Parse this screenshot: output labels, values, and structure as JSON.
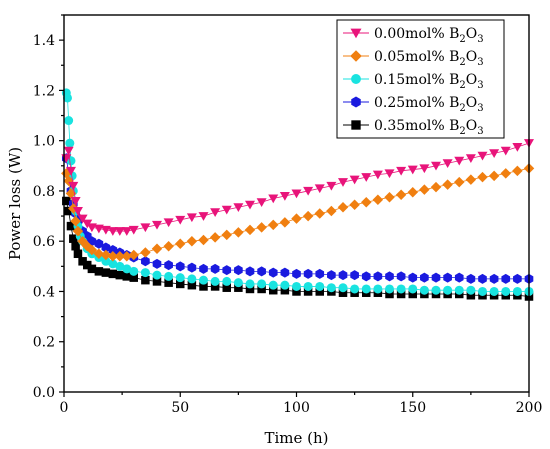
{
  "chart_data": {
    "type": "scatter",
    "title": "",
    "xlabel": "Time (h)",
    "ylabel": "Power loss (W)",
    "xlim": [
      0,
      200
    ],
    "ylim": [
      0,
      1.5
    ],
    "xticks": [
      0,
      50,
      100,
      150,
      200
    ],
    "yticks": [
      0.0,
      0.2,
      0.4,
      0.6,
      0.8,
      1.0,
      1.2,
      1.4
    ],
    "xtick_labels": [
      "0",
      "50",
      "100",
      "150",
      "200"
    ],
    "ytick_labels": [
      "0.0",
      "0.2",
      "0.4",
      "0.6",
      "0.8",
      "1.0",
      "1.2",
      "1.4"
    ],
    "grid": false,
    "legend_position": "top-right",
    "series": [
      {
        "name": "0.00mol% B2O3",
        "legend_main": "0.00mol% B",
        "legend_sub1": "2",
        "legend_mid": "O",
        "legend_sub2": "3",
        "marker": "triangle-down",
        "color": "#e8147a",
        "x": [
          1,
          2,
          3,
          4,
          5,
          6,
          8,
          10,
          12,
          15,
          18,
          21,
          24,
          27,
          30,
          35,
          40,
          45,
          50,
          55,
          60,
          65,
          70,
          75,
          80,
          85,
          90,
          95,
          100,
          105,
          110,
          115,
          120,
          125,
          130,
          135,
          140,
          145,
          150,
          155,
          160,
          165,
          170,
          175,
          180,
          185,
          190,
          195,
          200
        ],
        "y": [
          0.93,
          0.96,
          0.88,
          0.82,
          0.76,
          0.72,
          0.69,
          0.67,
          0.655,
          0.65,
          0.645,
          0.64,
          0.64,
          0.64,
          0.645,
          0.655,
          0.665,
          0.675,
          0.685,
          0.695,
          0.7,
          0.715,
          0.725,
          0.735,
          0.745,
          0.755,
          0.77,
          0.78,
          0.79,
          0.8,
          0.81,
          0.82,
          0.835,
          0.845,
          0.855,
          0.865,
          0.87,
          0.88,
          0.885,
          0.89,
          0.9,
          0.91,
          0.92,
          0.93,
          0.94,
          0.95,
          0.96,
          0.975,
          0.99
        ]
      },
      {
        "name": "0.05mol% B2O3",
        "legend_main": "0.05mol% B",
        "legend_sub1": "2",
        "legend_mid": "O",
        "legend_sub2": "3",
        "marker": "diamond",
        "color": "#f07f10",
        "x": [
          1,
          2,
          3,
          4,
          5,
          6,
          8,
          10,
          12,
          15,
          18,
          21,
          24,
          27,
          30,
          35,
          40,
          45,
          50,
          55,
          60,
          65,
          70,
          75,
          80,
          85,
          90,
          95,
          100,
          105,
          110,
          115,
          120,
          125,
          130,
          135,
          140,
          145,
          150,
          155,
          160,
          165,
          170,
          175,
          180,
          185,
          190,
          195,
          200
        ],
        "y": [
          0.87,
          0.84,
          0.79,
          0.73,
          0.68,
          0.64,
          0.6,
          0.58,
          0.565,
          0.55,
          0.545,
          0.54,
          0.54,
          0.54,
          0.545,
          0.555,
          0.57,
          0.58,
          0.59,
          0.6,
          0.605,
          0.615,
          0.625,
          0.635,
          0.645,
          0.655,
          0.665,
          0.675,
          0.69,
          0.7,
          0.71,
          0.72,
          0.735,
          0.745,
          0.755,
          0.765,
          0.775,
          0.785,
          0.795,
          0.805,
          0.815,
          0.825,
          0.835,
          0.845,
          0.855,
          0.86,
          0.87,
          0.88,
          0.89
        ]
      },
      {
        "name": "0.15mol% B2O3",
        "legend_main": "0.15mol% B",
        "legend_sub1": "2",
        "legend_mid": "O",
        "legend_sub2": "3",
        "marker": "circle",
        "color": "#19e3e0",
        "x": [
          1,
          1.5,
          2,
          2.5,
          3,
          3.5,
          4,
          5,
          6,
          7,
          8,
          10,
          12,
          15,
          18,
          21,
          24,
          27,
          30,
          35,
          40,
          45,
          50,
          55,
          60,
          65,
          70,
          75,
          80,
          85,
          90,
          95,
          100,
          105,
          110,
          115,
          120,
          125,
          130,
          135,
          140,
          145,
          150,
          155,
          160,
          165,
          170,
          175,
          180,
          185,
          190,
          195,
          200
        ],
        "y": [
          1.19,
          1.17,
          1.08,
          0.99,
          0.92,
          0.86,
          0.8,
          0.72,
          0.66,
          0.62,
          0.6,
          0.57,
          0.55,
          0.535,
          0.52,
          0.51,
          0.5,
          0.49,
          0.48,
          0.475,
          0.465,
          0.46,
          0.455,
          0.45,
          0.445,
          0.44,
          0.44,
          0.435,
          0.43,
          0.43,
          0.425,
          0.425,
          0.42,
          0.42,
          0.42,
          0.415,
          0.415,
          0.41,
          0.41,
          0.41,
          0.41,
          0.41,
          0.41,
          0.405,
          0.405,
          0.405,
          0.405,
          0.405,
          0.4,
          0.4,
          0.4,
          0.4,
          0.4
        ]
      },
      {
        "name": "0.25mol% B2O3",
        "legend_main": "0.25mol% B",
        "legend_sub1": "2",
        "legend_mid": "O",
        "legend_sub2": "3",
        "marker": "hexagon",
        "color": "#1a1adf",
        "x": [
          1,
          2,
          3,
          4,
          5,
          6,
          8,
          10,
          12,
          15,
          18,
          21,
          24,
          27,
          30,
          35,
          40,
          45,
          50,
          55,
          60,
          65,
          70,
          75,
          80,
          85,
          90,
          95,
          100,
          105,
          110,
          115,
          120,
          125,
          130,
          135,
          140,
          145,
          150,
          155,
          160,
          165,
          170,
          175,
          180,
          185,
          190,
          195,
          200
        ],
        "y": [
          0.93,
          0.87,
          0.8,
          0.75,
          0.71,
          0.68,
          0.64,
          0.62,
          0.6,
          0.59,
          0.575,
          0.565,
          0.555,
          0.545,
          0.535,
          0.52,
          0.51,
          0.505,
          0.5,
          0.495,
          0.49,
          0.49,
          0.485,
          0.485,
          0.48,
          0.48,
          0.475,
          0.475,
          0.47,
          0.47,
          0.47,
          0.465,
          0.465,
          0.465,
          0.46,
          0.46,
          0.46,
          0.46,
          0.455,
          0.455,
          0.455,
          0.455,
          0.455,
          0.45,
          0.45,
          0.45,
          0.45,
          0.45,
          0.45
        ]
      },
      {
        "name": "0.35mol% B2O3",
        "legend_main": "0.35mol% B",
        "legend_sub1": "2",
        "legend_mid": "O",
        "legend_sub2": "3",
        "marker": "square",
        "color": "#000000",
        "x": [
          1,
          2,
          3,
          4,
          5,
          6,
          8,
          10,
          12,
          15,
          18,
          21,
          24,
          27,
          30,
          35,
          40,
          45,
          50,
          55,
          60,
          65,
          70,
          75,
          80,
          85,
          90,
          95,
          100,
          105,
          110,
          115,
          120,
          125,
          130,
          135,
          140,
          145,
          150,
          155,
          160,
          165,
          170,
          175,
          180,
          185,
          190,
          195,
          200
        ],
        "y": [
          0.76,
          0.72,
          0.66,
          0.61,
          0.58,
          0.55,
          0.52,
          0.505,
          0.49,
          0.48,
          0.475,
          0.47,
          0.465,
          0.46,
          0.455,
          0.445,
          0.44,
          0.435,
          0.43,
          0.425,
          0.42,
          0.42,
          0.415,
          0.415,
          0.41,
          0.41,
          0.405,
          0.405,
          0.4,
          0.4,
          0.4,
          0.4,
          0.395,
          0.395,
          0.395,
          0.395,
          0.39,
          0.39,
          0.39,
          0.39,
          0.39,
          0.39,
          0.39,
          0.385,
          0.385,
          0.385,
          0.385,
          0.385,
          0.38
        ]
      }
    ]
  }
}
